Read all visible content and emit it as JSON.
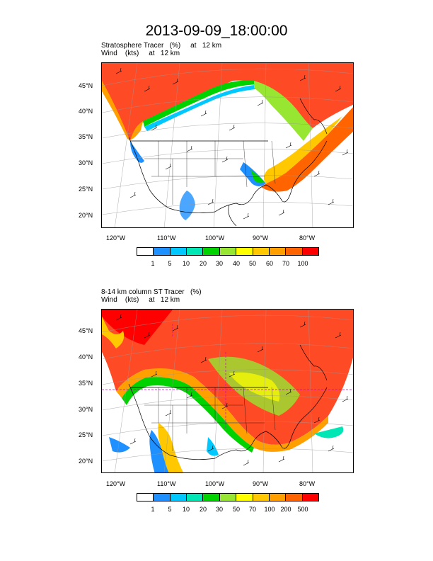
{
  "title": "2013-09-09_18:00:00",
  "panels": [
    {
      "line1": "Stratosphere Tracer   (%)     at   12 km",
      "line2": "Wind    (kts)     at   12 km",
      "lat_labels": [
        "45°N",
        "40°N",
        "35°N",
        "30°N",
        "25°N",
        "20°N"
      ],
      "lon_labels": [
        "120°W",
        "110°W",
        "100°W",
        "90°W",
        "80°W"
      ],
      "colorbar_labels": [
        "1",
        "5",
        "10",
        "20",
        "30",
        "40",
        "50",
        "60",
        "70",
        "100"
      ]
    },
    {
      "line1": "8-14 km column ST Tracer   (%)",
      "line2": "Wind    (kts)     at   12 km",
      "lat_labels": [
        "45°N",
        "40°N",
        "35°N",
        "30°N",
        "25°N",
        "20°N"
      ],
      "lon_labels": [
        "120°W",
        "110°W",
        "100°W",
        "90°W",
        "80°W"
      ],
      "colorbar_labels": [
        "1",
        "5",
        "10",
        "20",
        "30",
        "50",
        "70",
        "100",
        "200",
        "500"
      ]
    }
  ],
  "colorbar_colors": [
    "#ffffff",
    "#1e90ff",
    "#00c8ff",
    "#00e6b4",
    "#00d200",
    "#96e632",
    "#ffff00",
    "#ffc800",
    "#ffa000",
    "#ff6400",
    "#ff0000"
  ]
}
